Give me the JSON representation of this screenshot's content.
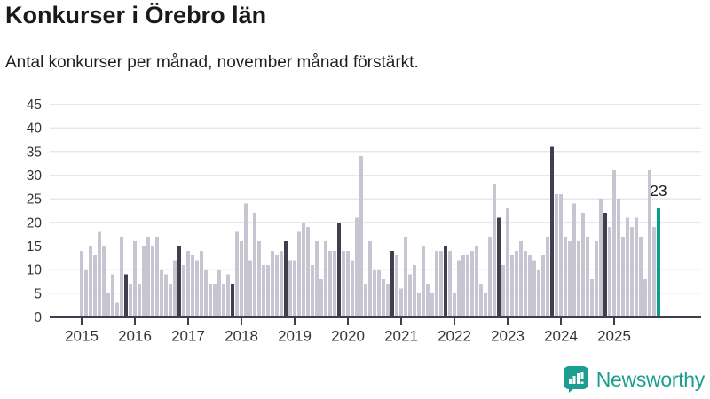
{
  "header": {
    "title": "Konkurser i Örebro län",
    "subtitle": "Antal konkurser per månad, november månad förstärkt."
  },
  "chart_data": {
    "type": "bar",
    "title": "Konkurser i Örebro län",
    "subtitle": "Antal konkurser per månad, november månad förstärkt.",
    "ylabel": "",
    "xlabel": "",
    "ylim": [
      0,
      45
    ],
    "y_ticks": [
      0,
      5,
      10,
      15,
      20,
      25,
      30,
      35,
      40,
      45
    ],
    "x_tick_labels": [
      "2015",
      "2016",
      "2017",
      "2018",
      "2019",
      "2020",
      "2021",
      "2022",
      "2023",
      "2024",
      "2025"
    ],
    "grid": "horizontal",
    "legend": "none",
    "series": [
      {
        "year": "2015",
        "values": [
          14,
          10,
          15,
          13,
          18,
          15,
          5,
          9,
          3,
          17,
          9,
          7
        ]
      },
      {
        "year": "2016",
        "values": [
          16,
          7,
          15,
          17,
          15,
          17,
          10,
          9,
          7,
          12,
          15,
          11
        ]
      },
      {
        "year": "2017",
        "values": [
          14,
          13,
          12,
          14,
          10,
          7,
          7,
          10,
          7,
          9,
          7,
          18
        ]
      },
      {
        "year": "2018",
        "values": [
          16,
          24,
          12,
          22,
          16,
          11,
          11,
          14,
          13,
          14,
          16,
          12
        ]
      },
      {
        "year": "2019",
        "values": [
          12,
          18,
          20,
          19,
          11,
          16,
          8,
          16,
          14,
          14,
          20,
          14
        ]
      },
      {
        "year": "2020",
        "values": [
          14,
          12,
          21,
          34,
          7,
          16,
          10,
          10,
          8,
          7,
          14,
          13
        ]
      },
      {
        "year": "2021",
        "values": [
          6,
          17,
          9,
          11,
          5,
          15,
          7,
          5,
          14,
          14,
          15,
          14
        ]
      },
      {
        "year": "2022",
        "values": [
          5,
          12,
          13,
          13,
          14,
          15,
          7,
          5,
          17,
          28,
          21,
          11
        ]
      },
      {
        "year": "2023",
        "values": [
          23,
          13,
          14,
          16,
          14,
          13,
          12,
          10,
          13,
          17,
          36,
          26
        ]
      },
      {
        "year": "2024",
        "values": [
          26,
          17,
          16,
          24,
          16,
          22,
          17,
          8,
          16,
          25,
          22,
          19
        ]
      },
      {
        "year": "2025",
        "values": [
          31,
          25,
          17,
          21,
          19,
          21,
          17,
          8,
          31,
          19,
          23
        ]
      }
    ],
    "highlight": {
      "month_index": 10,
      "month_name": "november",
      "style": "dark"
    },
    "last_point": {
      "year": "2025",
      "month_index": 10,
      "value": 23,
      "label": "23",
      "style": "teal"
    },
    "colors": {
      "bar_default": "#c8c5d2",
      "bar_november": "#413e4e",
      "bar_current": "#0a9d8f",
      "grid": "#e8e8ea",
      "axis": "#3f3c4b",
      "tick_text": "#333333",
      "annotation_text": "#1d1d1d"
    }
  },
  "annotation": {
    "last_value_label": "23"
  },
  "footer": {
    "brand": "Newsworthy",
    "brand_color": "#1b9e8f"
  }
}
